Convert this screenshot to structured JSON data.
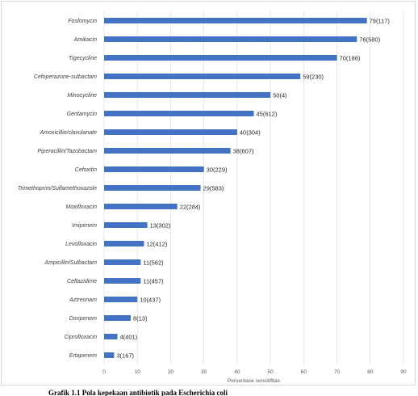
{
  "chart_data": {
    "type": "bar",
    "orientation": "horizontal",
    "categories": [
      "Fosfomycin",
      "Amikacin",
      "Tigecycline",
      "Cefoperazone-sulbactam",
      "Minocycline",
      "Gentamycin",
      "Amoxicillin/clavulanate",
      "Piperacillin/Tazobactam",
      "Cefoxitin",
      "Trimethoprim/Sulfamethoxazole",
      "Moxifloxacin",
      "Imipenem",
      "Levofloxacin",
      "Ampicillin/Sulbactam",
      "Ceftazidime",
      "Aztreonam",
      "Doripenem",
      "Ciprofloxacin",
      "Ertapenem"
    ],
    "values": [
      79,
      76,
      70,
      59,
      50,
      45,
      40,
      38,
      30,
      29,
      22,
      13,
      12,
      11,
      11,
      10,
      8,
      4,
      3
    ],
    "data_labels": [
      "79(117)",
      "76(580)",
      "70(186)",
      "59(230)",
      "50(4)",
      "45(612)",
      "40(304)",
      "38(607)",
      "30(229)",
      "29(583)",
      "22(284)",
      "13(302)",
      "12(412)",
      "11(562)",
      "11(457)",
      "10(437)",
      "8(13)",
      "4(401)",
      "3(167)"
    ],
    "xlabel": "Persentase sensitifitas",
    "ylabel": "",
    "xlim": [
      0,
      90
    ],
    "x_ticks": [
      0,
      10,
      20,
      30,
      40,
      50,
      60,
      70,
      80,
      90
    ],
    "grid": true,
    "legend": "none",
    "bar_color": "#4472c4"
  },
  "caption": "Grafik 1.1 Pola kepekaan antibiotik pada Escherichia coli"
}
